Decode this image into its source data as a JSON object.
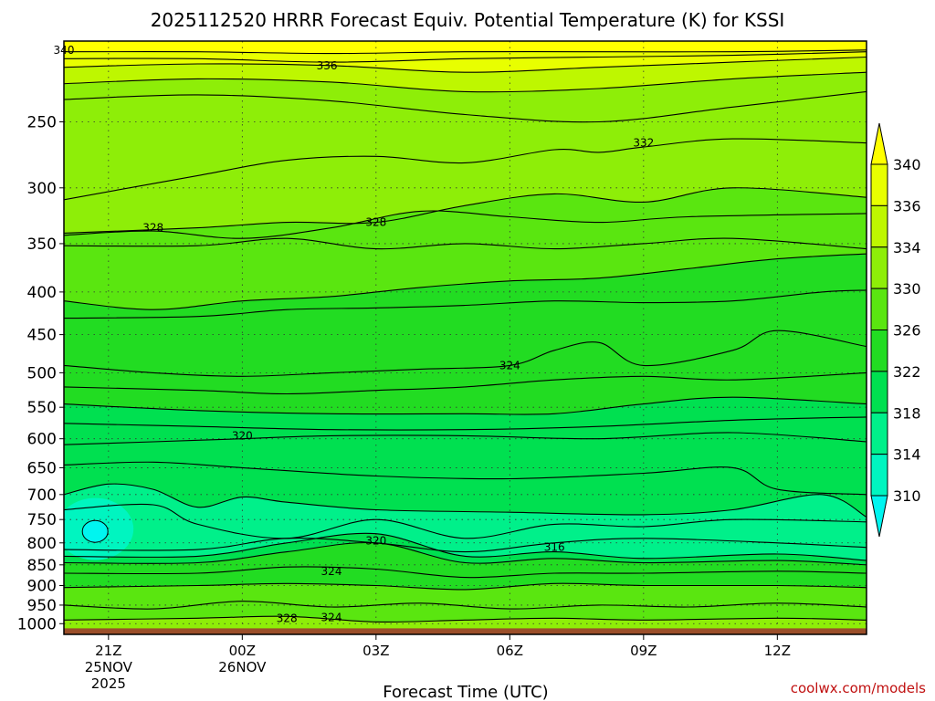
{
  "chart_data": {
    "type": "heatmap",
    "title": "2025112520 HRRR Forecast Equiv. Potential Temperature (K) for KSSI",
    "xlabel": "Forecast Time (UTC)",
    "ylabel": "",
    "x_ticks": [
      {
        "label": "21Z",
        "sub": [
          "25NOV",
          "2025"
        ],
        "hour": 0
      },
      {
        "label": "00Z",
        "sub": [
          "26NOV"
        ],
        "hour": 3
      },
      {
        "label": "03Z",
        "sub": [],
        "hour": 6
      },
      {
        "label": "06Z",
        "sub": [],
        "hour": 9
      },
      {
        "label": "09Z",
        "sub": [],
        "hour": 12
      },
      {
        "label": "12Z",
        "sub": [],
        "hour": 15
      }
    ],
    "x_range_hours": [
      -1,
      17
    ],
    "y_ticks": [
      "250",
      "300",
      "350",
      "400",
      "450",
      "500",
      "550",
      "600",
      "650",
      "700",
      "750",
      "800",
      "850",
      "900",
      "950",
      "1000"
    ],
    "y_range_hpa": [
      200,
      1030
    ],
    "y_scale": "log-pressure (inverted)",
    "ground_level_hpa": 1013,
    "ground_color": "#9b4f2a",
    "colorbar": {
      "labels": [
        "340",
        "336",
        "334",
        "330",
        "326",
        "322",
        "318",
        "314",
        "310"
      ],
      "levels": [
        310,
        314,
        318,
        322,
        326,
        330,
        334,
        336,
        340
      ],
      "colors": [
        "#00f5f0",
        "#00f5c0",
        "#00f08a",
        "#00e050",
        "#22dc22",
        "#5ae610",
        "#8eee08",
        "#bef700",
        "#e8ff00",
        "#ffff00"
      ]
    },
    "contour_labels": [
      {
        "text": "340",
        "h": -1.0,
        "p": 205
      },
      {
        "text": "336",
        "h": 4.9,
        "p": 214
      },
      {
        "text": "332",
        "h": 12.0,
        "p": 265
      },
      {
        "text": "328",
        "h": 1.0,
        "p": 335
      },
      {
        "text": "328",
        "h": 6.0,
        "p": 330
      },
      {
        "text": "324",
        "h": 9.0,
        "p": 490
      },
      {
        "text": "320",
        "h": 3.0,
        "p": 595
      },
      {
        "text": "320",
        "h": 6.0,
        "p": 795
      },
      {
        "text": "316",
        "h": 10.0,
        "p": 810
      },
      {
        "text": "324",
        "h": 5.0,
        "p": 865
      },
      {
        "text": "328",
        "h": 4.0,
        "p": 985
      },
      {
        "text": "324",
        "h": 5.0,
        "p": 983
      }
    ],
    "contours": [
      {
        "level": 340,
        "points": [
          [
            -1,
            206
          ],
          [
            2,
            206
          ],
          [
            5,
            207
          ],
          [
            8,
            206
          ],
          [
            11,
            206
          ],
          [
            14,
            206
          ],
          [
            17,
            205
          ]
        ]
      },
      {
        "level": 338,
        "points": [
          [
            -1,
            210
          ],
          [
            2,
            210
          ],
          [
            5,
            212
          ],
          [
            8,
            210
          ],
          [
            11,
            209
          ],
          [
            14,
            208
          ],
          [
            17,
            206
          ]
        ]
      },
      {
        "level": 336,
        "points": [
          [
            -1,
            215
          ],
          [
            2,
            213
          ],
          [
            5,
            214
          ],
          [
            8,
            218
          ],
          [
            11,
            215
          ],
          [
            14,
            212
          ],
          [
            17,
            209
          ]
        ]
      },
      {
        "level": 334,
        "points": [
          [
            -1,
            225
          ],
          [
            2,
            222
          ],
          [
            5,
            224
          ],
          [
            8,
            230
          ],
          [
            11,
            228
          ],
          [
            14,
            222
          ],
          [
            17,
            218
          ]
        ]
      },
      {
        "level": 333,
        "points": [
          [
            -1,
            235
          ],
          [
            2,
            232
          ],
          [
            5,
            236
          ],
          [
            8,
            245
          ],
          [
            11,
            250
          ],
          [
            14,
            240
          ],
          [
            17,
            230
          ]
        ]
      },
      {
        "level": 332,
        "points": [
          [
            -1,
            310
          ],
          [
            2,
            290
          ],
          [
            4,
            278
          ],
          [
            6,
            275
          ],
          [
            8,
            280
          ],
          [
            10,
            270
          ],
          [
            11,
            272
          ],
          [
            12,
            268
          ],
          [
            14,
            262
          ],
          [
            17,
            265
          ]
        ]
      },
      {
        "level": 330,
        "points": [
          [
            -1,
            340
          ],
          [
            2,
            335
          ],
          [
            4,
            330
          ],
          [
            6,
            330
          ],
          [
            8,
            315
          ],
          [
            10,
            305
          ],
          [
            12,
            312
          ],
          [
            14,
            300
          ],
          [
            17,
            308
          ]
        ]
      },
      {
        "level": 328,
        "points": [
          [
            -1,
            342
          ],
          [
            1,
            338
          ],
          [
            3,
            345
          ],
          [
            5,
            335
          ],
          [
            7,
            320
          ],
          [
            9,
            325
          ],
          [
            11,
            330
          ],
          [
            13,
            325
          ],
          [
            17,
            322
          ]
        ]
      },
      {
        "level": 327,
        "points": [
          [
            -1,
            352
          ],
          [
            2,
            352
          ],
          [
            4,
            345
          ],
          [
            6,
            355
          ],
          [
            8,
            350
          ],
          [
            10,
            355
          ],
          [
            12,
            350
          ],
          [
            14,
            345
          ],
          [
            17,
            355
          ]
        ]
      },
      {
        "level": 326,
        "points": [
          [
            -1,
            410
          ],
          [
            1,
            420
          ],
          [
            3,
            410
          ],
          [
            5,
            405
          ],
          [
            7,
            395
          ],
          [
            9,
            388
          ],
          [
            11,
            385
          ],
          [
            13,
            375
          ],
          [
            15,
            365
          ],
          [
            17,
            360
          ]
        ]
      },
      {
        "level": 325,
        "points": [
          [
            -1,
            430
          ],
          [
            2,
            428
          ],
          [
            4,
            420
          ],
          [
            6,
            418
          ],
          [
            8,
            415
          ],
          [
            10,
            410
          ],
          [
            12,
            412
          ],
          [
            14,
            410
          ],
          [
            16,
            400
          ],
          [
            17,
            398
          ]
        ]
      },
      {
        "level": 324,
        "points": [
          [
            -1,
            490
          ],
          [
            1,
            500
          ],
          [
            3,
            505
          ],
          [
            5,
            500
          ],
          [
            7,
            495
          ],
          [
            9,
            490
          ],
          [
            10,
            470
          ],
          [
            11,
            460
          ],
          [
            12,
            490
          ],
          [
            14,
            470
          ],
          [
            15,
            445
          ],
          [
            17,
            465
          ]
        ]
      },
      {
        "level": 323,
        "points": [
          [
            -1,
            520
          ],
          [
            2,
            525
          ],
          [
            4,
            530
          ],
          [
            6,
            525
          ],
          [
            8,
            520
          ],
          [
            10,
            510
          ],
          [
            12,
            505
          ],
          [
            14,
            510
          ],
          [
            17,
            500
          ]
        ]
      },
      {
        "level": 322,
        "points": [
          [
            -1,
            545
          ],
          [
            2,
            555
          ],
          [
            5,
            560
          ],
          [
            8,
            560
          ],
          [
            10,
            560
          ],
          [
            12,
            545
          ],
          [
            14,
            535
          ],
          [
            17,
            545
          ]
        ]
      },
      {
        "level": 321,
        "points": [
          [
            -1,
            575
          ],
          [
            2,
            580
          ],
          [
            5,
            585
          ],
          [
            8,
            585
          ],
          [
            11,
            580
          ],
          [
            14,
            570
          ],
          [
            17,
            565
          ]
        ]
      },
      {
        "level": 320,
        "points": [
          [
            -1,
            610
          ],
          [
            1,
            605
          ],
          [
            3,
            600
          ],
          [
            5,
            595
          ],
          [
            8,
            595
          ],
          [
            11,
            600
          ],
          [
            14,
            590
          ],
          [
            17,
            605
          ]
        ]
      },
      {
        "level": 319,
        "points": [
          [
            -1,
            645
          ],
          [
            1,
            640
          ],
          [
            3,
            650
          ],
          [
            6,
            665
          ],
          [
            9,
            670
          ],
          [
            12,
            660
          ],
          [
            14,
            650
          ],
          [
            15,
            690
          ],
          [
            17,
            700
          ]
        ]
      },
      {
        "level": 318,
        "points": [
          [
            -1,
            700
          ],
          [
            0,
            680
          ],
          [
            1,
            690
          ],
          [
            2,
            725
          ],
          [
            3,
            705
          ],
          [
            4,
            715
          ],
          [
            6,
            730
          ],
          [
            9,
            735
          ],
          [
            12,
            740
          ],
          [
            14,
            730
          ],
          [
            16,
            700
          ],
          [
            17,
            745
          ]
        ]
      },
      {
        "level": 317,
        "points": [
          [
            -1,
            730
          ],
          [
            1,
            720
          ],
          [
            2,
            760
          ],
          [
            4,
            790
          ],
          [
            6,
            750
          ],
          [
            8,
            790
          ],
          [
            10,
            760
          ],
          [
            12,
            765
          ],
          [
            14,
            750
          ],
          [
            17,
            755
          ]
        ]
      },
      {
        "level": 316,
        "points": [
          [
            -1,
            815
          ],
          [
            2,
            815
          ],
          [
            4,
            790
          ],
          [
            6,
            800
          ],
          [
            8,
            820
          ],
          [
            10,
            800
          ],
          [
            12,
            790
          ],
          [
            15,
            800
          ],
          [
            17,
            810
          ]
        ]
      },
      {
        "level": 320,
        "points": [
          [
            -1,
            830
          ],
          [
            2,
            830
          ],
          [
            4,
            800
          ],
          [
            6,
            780
          ],
          [
            8,
            830
          ],
          [
            10,
            820
          ],
          [
            12,
            835
          ],
          [
            15,
            825
          ],
          [
            17,
            840
          ]
        ]
      },
      {
        "level": 322,
        "points": [
          [
            -1,
            845
          ],
          [
            2,
            845
          ],
          [
            4,
            820
          ],
          [
            6,
            800
          ],
          [
            8,
            845
          ],
          [
            10,
            835
          ],
          [
            12,
            845
          ],
          [
            15,
            840
          ],
          [
            17,
            850
          ]
        ]
      },
      {
        "level": 324,
        "points": [
          [
            -1,
            870
          ],
          [
            2,
            870
          ],
          [
            4,
            855
          ],
          [
            6,
            860
          ],
          [
            8,
            880
          ],
          [
            10,
            870
          ],
          [
            12,
            870
          ],
          [
            15,
            865
          ],
          [
            17,
            870
          ]
        ]
      },
      {
        "level": 326,
        "points": [
          [
            -1,
            905
          ],
          [
            2,
            900
          ],
          [
            4,
            895
          ],
          [
            6,
            900
          ],
          [
            8,
            910
          ],
          [
            10,
            895
          ],
          [
            12,
            900
          ],
          [
            15,
            900
          ],
          [
            17,
            905
          ]
        ]
      },
      {
        "level": 326,
        "points": [
          [
            -1,
            950
          ],
          [
            1,
            960
          ],
          [
            3,
            940
          ],
          [
            5,
            955
          ],
          [
            7,
            945
          ],
          [
            9,
            960
          ],
          [
            11,
            950
          ],
          [
            13,
            955
          ],
          [
            15,
            945
          ],
          [
            17,
            955
          ]
        ]
      },
      {
        "level": 328,
        "points": [
          [
            -1,
            990
          ],
          [
            2,
            985
          ],
          [
            4,
            980
          ],
          [
            6,
            995
          ],
          [
            8,
            990
          ],
          [
            10,
            985
          ],
          [
            12,
            990
          ],
          [
            15,
            985
          ],
          [
            17,
            990
          ]
        ]
      }
    ]
  },
  "credit": "coolwx.com/models"
}
